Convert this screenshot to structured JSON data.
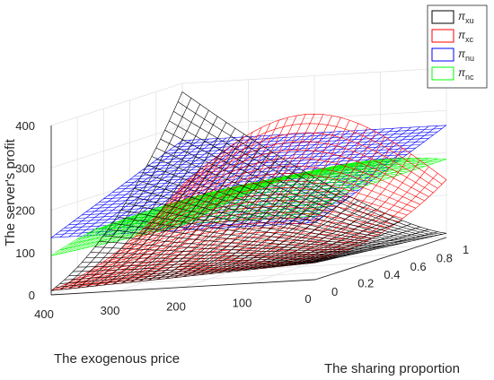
{
  "chart_data": {
    "type": "surface",
    "zlabel": "The server's profit",
    "xlabel": "The exogenous price",
    "ylabel": "The sharing proportion",
    "zticks": [
      "0",
      "100",
      "200",
      "300",
      "400"
    ],
    "xticks": [
      "400",
      "300",
      "200",
      "100",
      "0"
    ],
    "yticks": [
      "0",
      "0.2",
      "0.4",
      "0.6",
      "0.8",
      "1"
    ],
    "xlim": [
      0,
      400
    ],
    "ylim": [
      0,
      1
    ],
    "zlim": [
      0,
      400
    ],
    "grid": true,
    "legend_position": "top-right",
    "series": [
      {
        "name": "π",
        "sub": "xu",
        "color": "#000000",
        "type": "surface",
        "note_values": {
          "corner_p400_s0": 10,
          "corner_p0_s0": 40,
          "corner_p400_s1": 380,
          "corner_p0_s1": 10
        }
      },
      {
        "name": "π",
        "sub": "xc",
        "color": "#ff0000",
        "type": "surface",
        "note_values": {
          "corner_p400_s0": 10,
          "corner_p0_s0": 40,
          "peak_at_s1": 320
        }
      },
      {
        "name": "π",
        "sub": "nu",
        "color": "#0000ff",
        "type": "surface",
        "note_values": {
          "constant_at_s0": 135,
          "constant_at_s1": 265
        }
      },
      {
        "name": "π",
        "sub": "nc",
        "color": "#00ff00",
        "type": "surface",
        "note_values": {
          "at_s0_max": 280,
          "at_s1_value": 220
        }
      }
    ]
  }
}
